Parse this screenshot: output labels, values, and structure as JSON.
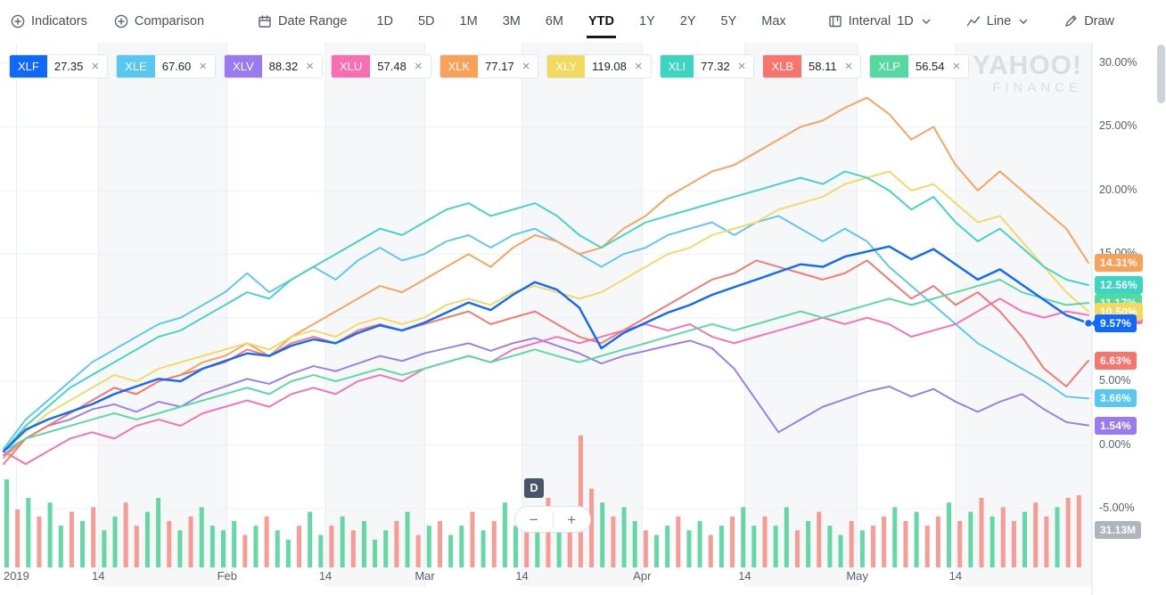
{
  "toolbar": {
    "indicators": "Indicators",
    "comparison": "Comparison",
    "date_range": "Date Range",
    "ranges": [
      "1D",
      "5D",
      "1M",
      "3M",
      "6M",
      "YTD",
      "1Y",
      "2Y",
      "5Y",
      "Max"
    ],
    "active_range": "YTD",
    "interval_label": "Interval",
    "interval_value": "1D",
    "chart_type": "Line",
    "draw": "Draw"
  },
  "chips": [
    {
      "ticker": "XLF",
      "value": "27.35",
      "color": "#0f69ff"
    },
    {
      "ticker": "XLE",
      "value": "67.60",
      "color": "#57c7f4"
    },
    {
      "ticker": "XLV",
      "value": "88.32",
      "color": "#997af0"
    },
    {
      "ticker": "XLU",
      "value": "57.48",
      "color": "#f96eb2"
    },
    {
      "ticker": "XLK",
      "value": "77.17",
      "color": "#f9a158"
    },
    {
      "ticker": "XLY",
      "value": "119.08",
      "color": "#f2d960"
    },
    {
      "ticker": "XLI",
      "value": "77.32",
      "color": "#3ed4c2"
    },
    {
      "ticker": "XLB",
      "value": "58.11",
      "color": "#f8746d"
    },
    {
      "ticker": "XLP",
      "value": "56.54",
      "color": "#54daa0"
    }
  ],
  "watermark": {
    "line1": "YAHOO!",
    "line2": "FINANCE"
  },
  "controls": {
    "marker_label": "D",
    "zoom_out_label": "−",
    "zoom_in_label": "+"
  },
  "badges": [
    {
      "series": "XLK",
      "label": "14.31%",
      "value": 14.31,
      "color": "#f9a158"
    },
    {
      "series": "XLI",
      "label": "12.56%",
      "value": 12.56,
      "color": "#3ed4c2"
    },
    {
      "series": "XLP",
      "label": "11.17%",
      "value": 11.17,
      "color": "#54daa0"
    },
    {
      "series": "XLU",
      "label": "10.21%",
      "value": 10.21,
      "color": "#f96eb2"
    },
    {
      "series": "XLY",
      "label": "10.50%",
      "value": 10.5,
      "color": "#f2d960"
    },
    {
      "series": "XLF",
      "label": "9.57%",
      "value": 9.57,
      "color": "#0f69ff",
      "active": true
    },
    {
      "series": "XLB",
      "label": "6.63%",
      "value": 6.63,
      "color": "#f8746d"
    },
    {
      "series": "XLE",
      "label": "3.66%",
      "value": 3.66,
      "color": "#57c7f4"
    },
    {
      "series": "XLV",
      "label": "1.54%",
      "value": 1.54,
      "color": "#997af0"
    }
  ],
  "chart_data": {
    "type": "line",
    "x_unit": "trading days, Jan 2 – late May 2019",
    "ylabel": "% change YTD",
    "ylim": [
      -5,
      30
    ],
    "grid": true,
    "legend_position": "right-edge badges",
    "y_ticks": {
      "values": [
        30,
        25,
        20,
        15,
        10,
        5,
        0,
        -5
      ],
      "labels": [
        "30.00%",
        "25.00%",
        "20.00%",
        "15.00%",
        "10.00%",
        "5.00%",
        "0.00%",
        "-5.00%"
      ]
    },
    "x_ticks": {
      "labels": [
        "2019",
        "14",
        "Feb",
        "14",
        "Mar",
        "14",
        "Apr",
        "14",
        "May",
        "14"
      ],
      "fractions": [
        0.015,
        0.09,
        0.208,
        0.298,
        0.389,
        0.478,
        0.588,
        0.682,
        0.785,
        0.875
      ]
    },
    "series": [
      {
        "name": "XLF",
        "color": "#0f69ff",
        "end_label": "9.57%",
        "values": [
          -0.5,
          1.2,
          2.0,
          2.6,
          3.2,
          4.0,
          4.6,
          5.2,
          5.0,
          6.0,
          6.6,
          7.2,
          7.0,
          7.8,
          8.3,
          8.0,
          8.8,
          9.4,
          9.0,
          9.6,
          10.4,
          11.2,
          10.6,
          11.8,
          12.8,
          12.2,
          10.8,
          7.6,
          8.8,
          9.6,
          10.4,
          11.0,
          11.8,
          12.4,
          13.0,
          13.6,
          14.2,
          14.0,
          14.8,
          15.2,
          15.6,
          14.6,
          15.4,
          14.2,
          13.0,
          13.8,
          12.6,
          11.4,
          10.2,
          9.57
        ]
      },
      {
        "name": "XLE",
        "color": "#57c7f4",
        "end_label": "3.66%",
        "values": [
          -0.3,
          2.0,
          3.5,
          5.0,
          6.5,
          7.5,
          8.5,
          9.5,
          10.0,
          11.0,
          12.0,
          13.5,
          12.0,
          13.0,
          14.0,
          13.0,
          14.5,
          15.5,
          14.5,
          15.0,
          16.0,
          16.5,
          15.5,
          16.5,
          17.0,
          16.0,
          15.0,
          14.0,
          15.0,
          15.5,
          16.5,
          17.0,
          17.5,
          16.5,
          17.5,
          18.0,
          17.0,
          16.0,
          17.0,
          16.0,
          14.0,
          12.5,
          11.0,
          9.5,
          8.0,
          7.0,
          6.0,
          5.0,
          3.8,
          3.66
        ]
      },
      {
        "name": "XLV",
        "color": "#997af0",
        "end_label": "1.54%",
        "values": [
          -0.8,
          0.5,
          1.5,
          2.0,
          2.8,
          3.2,
          2.6,
          3.4,
          3.0,
          4.0,
          4.6,
          5.2,
          4.8,
          5.6,
          6.2,
          5.8,
          6.4,
          7.0,
          6.6,
          7.2,
          7.6,
          8.0,
          7.4,
          8.0,
          8.4,
          7.8,
          7.2,
          6.4,
          7.0,
          7.4,
          7.8,
          8.2,
          7.6,
          6.0,
          3.5,
          1.0,
          2.0,
          3.0,
          3.6,
          4.2,
          4.6,
          3.8,
          4.4,
          3.4,
          2.6,
          3.4,
          4.0,
          2.8,
          1.8,
          1.54
        ]
      },
      {
        "name": "XLU",
        "color": "#f96eb2",
        "end_label": "10.21%",
        "values": [
          -0.5,
          -1.5,
          -0.5,
          0.5,
          1.0,
          0.5,
          1.5,
          2.0,
          1.5,
          2.5,
          3.0,
          3.5,
          3.0,
          4.0,
          4.5,
          4.0,
          5.0,
          5.5,
          5.0,
          6.0,
          6.5,
          7.0,
          6.5,
          7.5,
          8.0,
          8.5,
          8.0,
          8.5,
          9.0,
          9.5,
          9.0,
          9.5,
          8.5,
          8.0,
          8.5,
          9.0,
          9.5,
          10.0,
          9.5,
          10.0,
          9.5,
          8.5,
          9.0,
          9.5,
          10.5,
          11.5,
          10.5,
          10.0,
          10.5,
          10.21
        ]
      },
      {
        "name": "XLK",
        "color": "#f9a158",
        "end_label": "14.31%",
        "values": [
          -1.0,
          0.5,
          1.5,
          2.5,
          3.5,
          4.5,
          4.0,
          5.0,
          5.5,
          6.5,
          7.0,
          8.0,
          7.0,
          8.5,
          9.5,
          10.5,
          11.5,
          12.5,
          12.0,
          13.0,
          14.0,
          15.0,
          14.0,
          15.5,
          16.5,
          16.0,
          15.0,
          15.5,
          17.0,
          18.0,
          19.5,
          20.5,
          21.5,
          22.0,
          23.0,
          24.0,
          25.0,
          25.5,
          26.5,
          27.3,
          26.0,
          24.0,
          25.0,
          22.0,
          20.0,
          21.5,
          20.0,
          18.5,
          17.0,
          14.31
        ]
      },
      {
        "name": "XLY",
        "color": "#f2d960",
        "end_label": "10.50%",
        "values": [
          -0.5,
          1.0,
          2.5,
          3.5,
          4.5,
          5.5,
          5.0,
          6.0,
          6.5,
          7.0,
          7.5,
          8.0,
          7.5,
          8.5,
          9.0,
          8.5,
          9.5,
          10.0,
          9.5,
          10.0,
          11.0,
          11.5,
          11.0,
          12.0,
          12.5,
          12.0,
          11.5,
          12.0,
          13.0,
          14.0,
          15.0,
          15.5,
          16.5,
          17.0,
          17.5,
          18.5,
          19.0,
          19.5,
          20.5,
          21.0,
          21.5,
          20.0,
          20.5,
          19.0,
          17.5,
          18.0,
          16.0,
          14.0,
          12.0,
          10.5
        ]
      },
      {
        "name": "XLI",
        "color": "#3ed4c2",
        "end_label": "12.56%",
        "values": [
          -0.5,
          1.5,
          3.0,
          4.5,
          5.5,
          6.5,
          7.5,
          8.5,
          9.0,
          10.0,
          11.0,
          12.0,
          11.5,
          13.0,
          14.0,
          15.0,
          16.0,
          17.0,
          16.5,
          17.5,
          18.5,
          19.0,
          18.0,
          18.5,
          19.0,
          18.0,
          16.5,
          15.5,
          16.5,
          17.5,
          18.0,
          18.5,
          19.0,
          19.5,
          20.0,
          20.5,
          21.0,
          20.5,
          21.5,
          21.0,
          20.0,
          18.5,
          19.5,
          17.5,
          16.0,
          17.0,
          15.5,
          14.0,
          13.0,
          12.56
        ]
      },
      {
        "name": "XLB",
        "color": "#f8746d",
        "end_label": "6.63%",
        "values": [
          -1.5,
          0.5,
          1.5,
          2.5,
          3.5,
          4.5,
          4.0,
          5.0,
          5.5,
          6.0,
          6.5,
          7.5,
          7.0,
          8.0,
          8.5,
          8.0,
          9.0,
          9.5,
          9.0,
          9.5,
          10.0,
          10.5,
          9.5,
          10.0,
          10.5,
          9.5,
          8.5,
          8.0,
          9.0,
          10.0,
          11.0,
          12.0,
          13.0,
          13.5,
          14.5,
          14.0,
          13.5,
          13.0,
          13.5,
          14.5,
          13.0,
          11.5,
          12.5,
          11.0,
          12.0,
          10.5,
          8.5,
          6.0,
          4.6,
          6.63
        ]
      },
      {
        "name": "XLP",
        "color": "#54daa0",
        "end_label": "11.17%",
        "values": [
          -0.5,
          0.5,
          1.0,
          1.5,
          2.0,
          2.5,
          2.0,
          2.5,
          3.0,
          3.5,
          4.0,
          4.5,
          4.0,
          5.0,
          5.5,
          5.0,
          5.5,
          6.0,
          5.5,
          6.0,
          6.5,
          7.0,
          6.5,
          7.0,
          7.5,
          7.0,
          6.5,
          7.0,
          7.5,
          8.0,
          8.5,
          9.0,
          9.5,
          9.0,
          9.5,
          10.0,
          10.5,
          10.0,
          10.5,
          11.0,
          11.5,
          11.0,
          11.5,
          12.0,
          12.5,
          13.0,
          12.0,
          11.5,
          11.0,
          11.17
        ]
      }
    ],
    "volume": {
      "unit": "M",
      "last_label": "31.13M",
      "up_color": "#3fcf8e",
      "down_color": "#f8837b",
      "bar_values": [
        38,
        25,
        30,
        22,
        28,
        18,
        24,
        20,
        26,
        16,
        22,
        28,
        18,
        24,
        30,
        20,
        16,
        22,
        26,
        18,
        16,
        20,
        14,
        18,
        22,
        16,
        12,
        18,
        24,
        14,
        18,
        22,
        16,
        20,
        12,
        16,
        20,
        24,
        14,
        18,
        20,
        14,
        18,
        24,
        16,
        20,
        28,
        18,
        22,
        16,
        30,
        20,
        24,
        57,
        34,
        28,
        22,
        26,
        20,
        16,
        14,
        18,
        22,
        16,
        20,
        14,
        18,
        22,
        26,
        18,
        22,
        18,
        26,
        16,
        20,
        24,
        18,
        14,
        20,
        16,
        18,
        22,
        26,
        20,
        24,
        18,
        22,
        28,
        20,
        24,
        30,
        22,
        26,
        20,
        24,
        28,
        22,
        26,
        30,
        31.13
      ],
      "bar_directions": "grgrggrgrggrrggrgrggggrgrggrggrgrgggrgrgrggrgrggrgrgrrrgrggrggrggrgrggrggrgrggrgrrgrgrrgrgrgrrgrrgrr"
    }
  }
}
